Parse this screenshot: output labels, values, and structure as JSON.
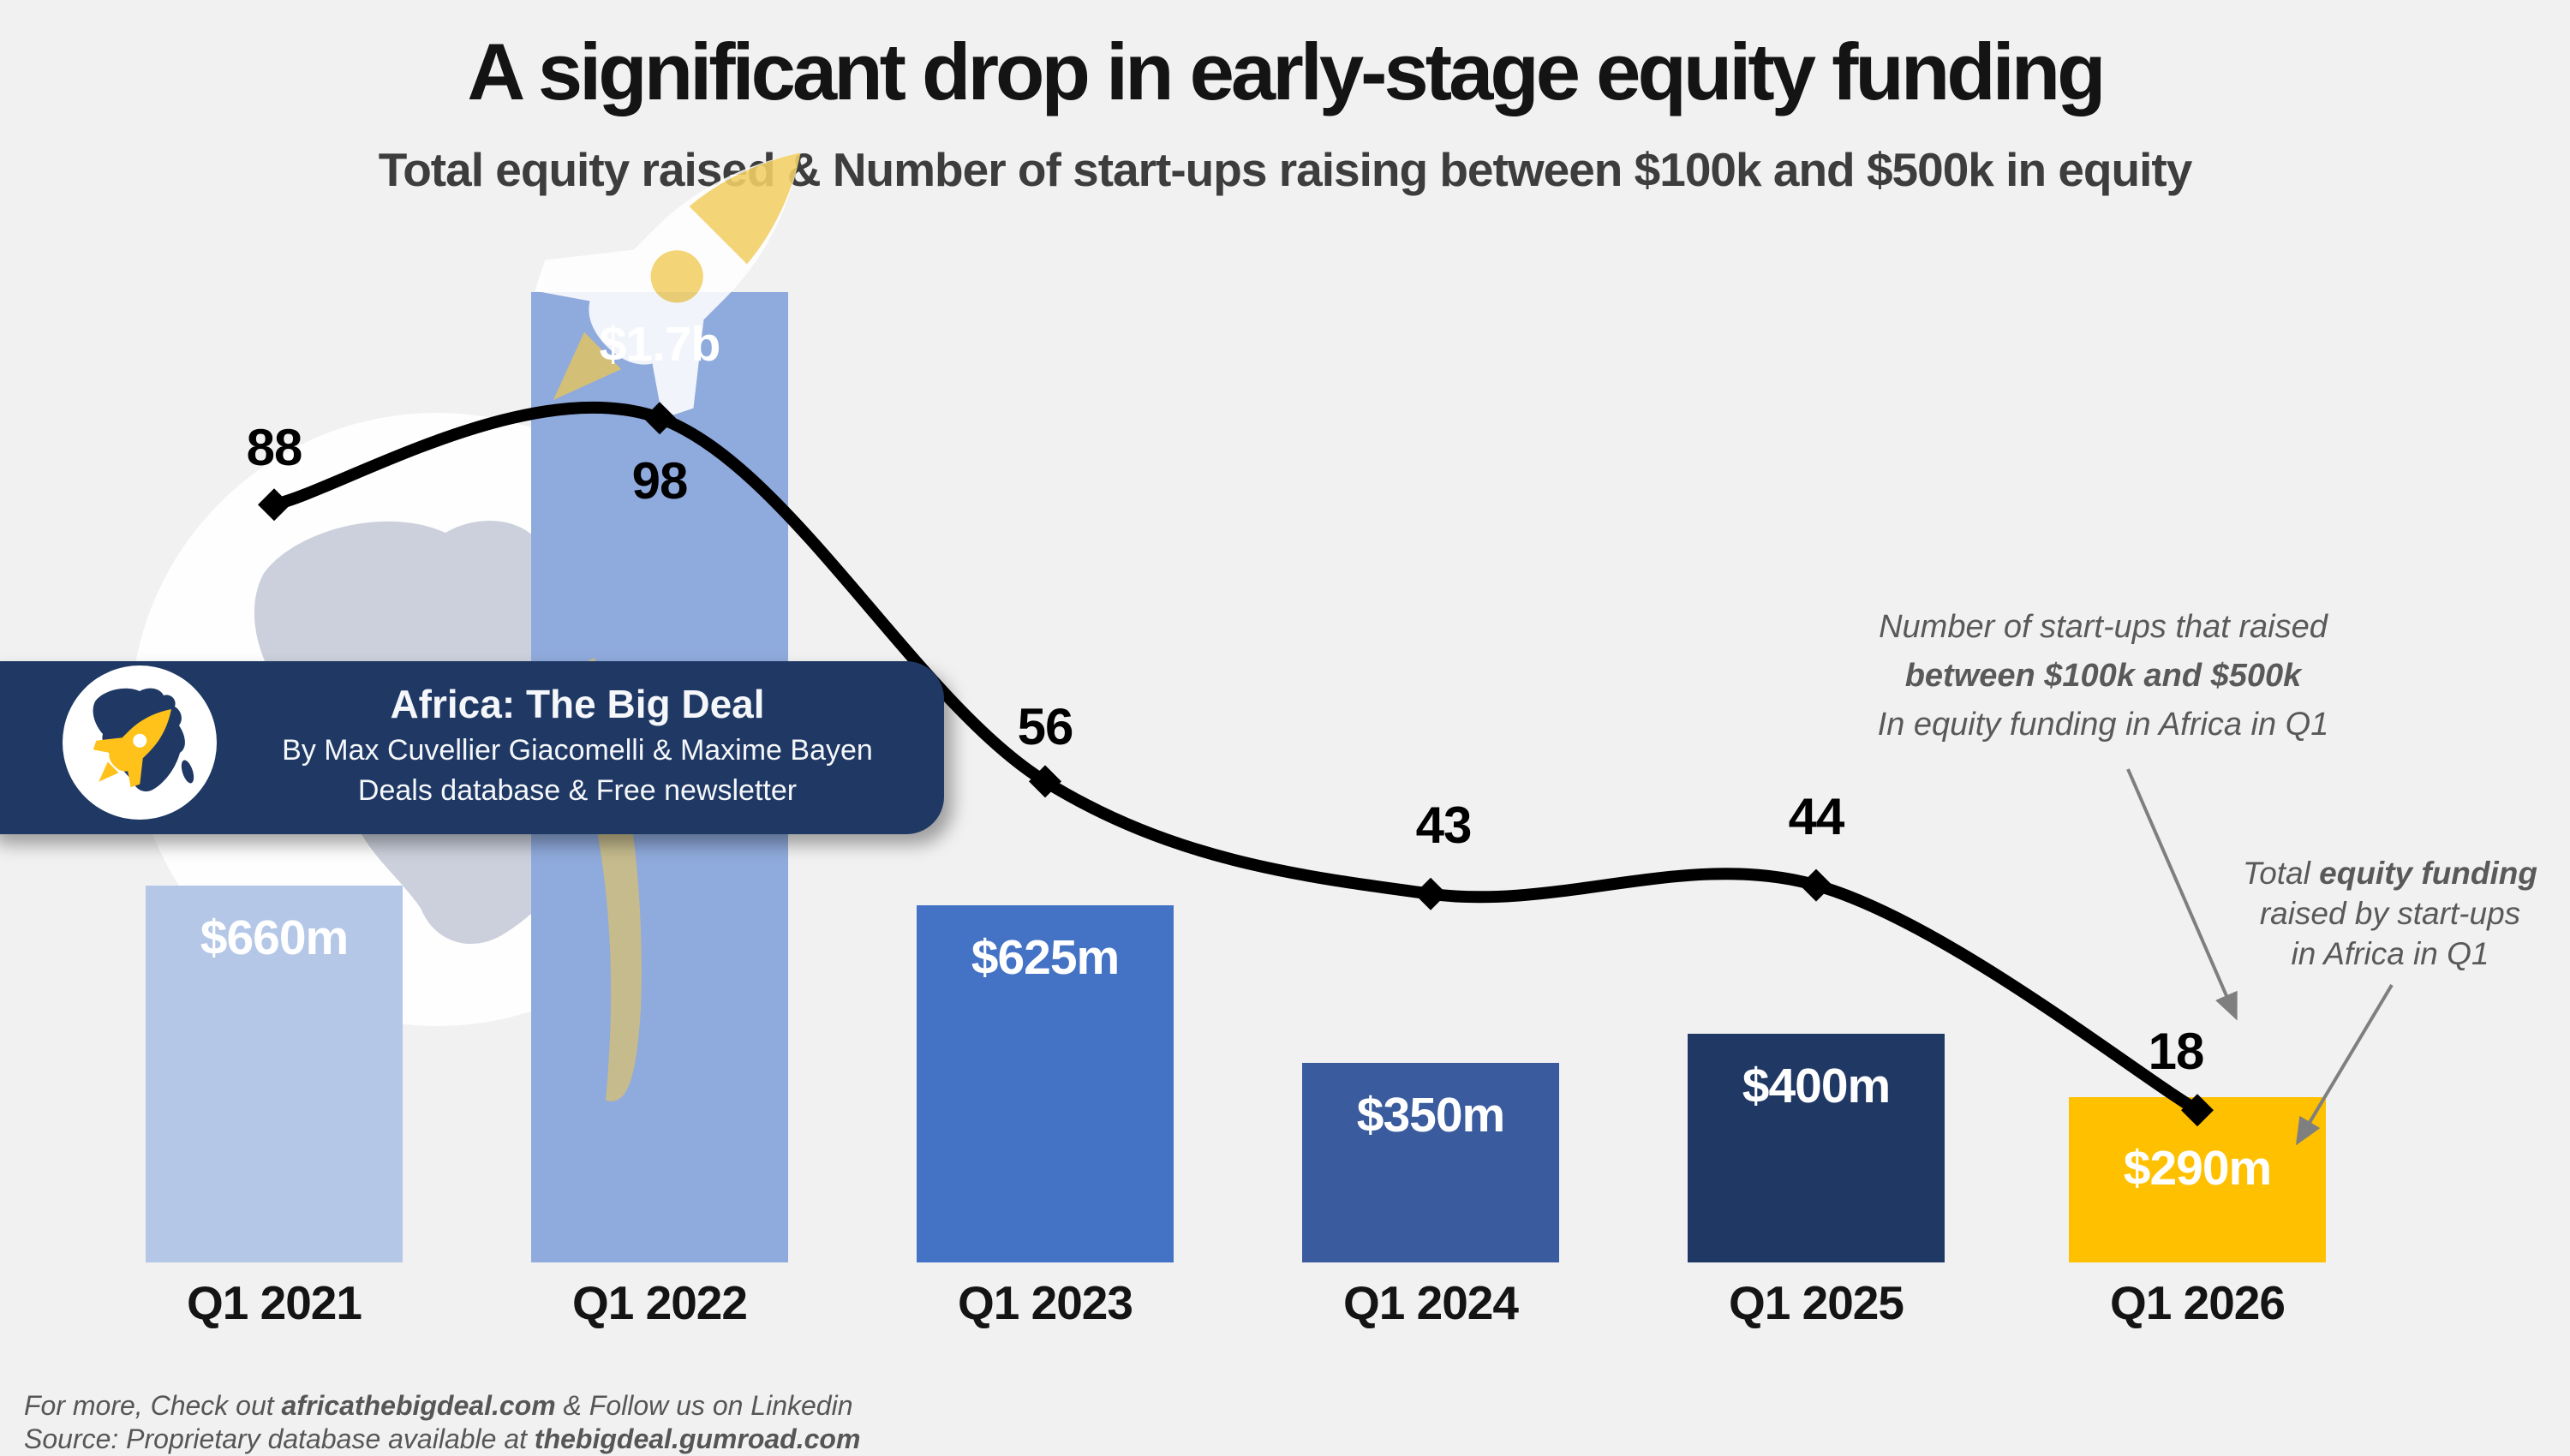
{
  "header": {
    "title": "A significant drop in early-stage equity funding",
    "subtitle": "Total equity raised & Number of start-ups raising between $100k and $500k in equity"
  },
  "badge": {
    "title": "Africa: The Big Deal",
    "line2": "By Max Cuvellier Giacomelli & Maxime Bayen",
    "line3": "Deals database & Free newsletter",
    "logo_icon": "africa-rocket-logo"
  },
  "annotations": {
    "startups": {
      "line1": "Number of start-ups that raised",
      "line2": "between $100k and $500k",
      "line3": "In equity funding in Africa in Q1"
    },
    "funding": {
      "line1_pre": "Total ",
      "line1_bold": "equity funding",
      "line2": "raised by start-ups",
      "line3": "in Africa in Q1"
    }
  },
  "footer": {
    "line1_pre": "For more, Check out ",
    "line1_bold": "africathebigdeal.com",
    "line1_post": " & Follow us on Linkedin",
    "line2_pre": "Source: Proprietary database available at ",
    "line2_bold": "thebigdeal.gumroad.com"
  },
  "colors": {
    "background": "#F1F1F2",
    "badge_navy": "#1F3864",
    "line_black": "#000000",
    "annotation_gray": "#595959",
    "arrow_gray": "#7F7F7F",
    "watermark_gray": "#C8CEDA",
    "watermark_gold": "#F2C94C",
    "logo_gold": "#FFC21B"
  },
  "chart_data": {
    "type": "combo bar+line",
    "categories": [
      "Q1 2021",
      "Q1 2022",
      "Q1 2023",
      "Q1 2024",
      "Q1 2025",
      "Q1 2026"
    ],
    "series": [
      {
        "name": "Total equity funding raised by start-ups in Africa in Q1",
        "type": "bar",
        "unit": "$m",
        "values": [
          660,
          1700,
          625,
          350,
          400,
          290
        ],
        "labels": [
          "$660m",
          "$1.7b",
          "$625m",
          "$350m",
          "$400m",
          "$290m"
        ],
        "colors": [
          "#B4C7E7",
          "#8FAADC",
          "#4472C4",
          "#3A5B9E",
          "#203864",
          "#FFC000"
        ]
      },
      {
        "name": "Number of start-ups that raised between $100k and $500k in equity funding in Africa in Q1",
        "type": "line",
        "values": [
          88,
          98,
          56,
          43,
          44,
          18
        ],
        "labels": [
          "88",
          "98",
          "56",
          "43",
          "44",
          "18"
        ],
        "color": "#000000",
        "marker": "diamond"
      }
    ],
    "bar_axis_range_musd": [
      0,
      1700
    ],
    "line_axis_range": [
      0,
      100
    ],
    "grid": false,
    "legend": "arrow annotations at right"
  }
}
